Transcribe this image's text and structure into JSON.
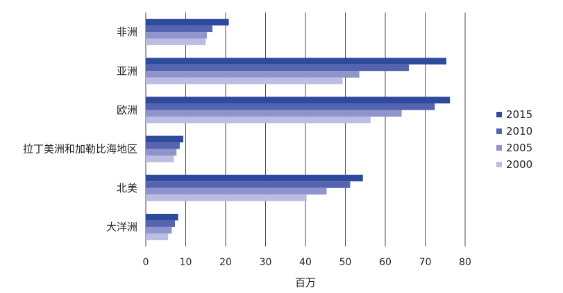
{
  "chart_data": {
    "type": "bar",
    "orientation": "horizontal",
    "categories": [
      "非洲",
      "亚洲",
      "欧洲",
      "拉丁美洲和加勒比海地区",
      "北美",
      "大洋洲"
    ],
    "series": [
      {
        "name": "2015",
        "color": "#2e4a9c",
        "values": [
          20.8,
          75.3,
          76.2,
          9.4,
          54.4,
          8.1
        ]
      },
      {
        "name": "2010",
        "color": "#5563b0",
        "values": [
          16.7,
          65.9,
          72.4,
          8.5,
          51.2,
          7.3
        ]
      },
      {
        "name": "2005",
        "color": "#8f94cc",
        "values": [
          15.3,
          53.5,
          64.1,
          7.7,
          45.3,
          6.5
        ]
      },
      {
        "name": "2000",
        "color": "#bcbde2",
        "values": [
          15.0,
          49.3,
          56.3,
          7.0,
          40.3,
          5.6
        ]
      }
    ],
    "xticks": [
      "0",
      "10",
      "20",
      "30",
      "40",
      "50",
      "60",
      "70",
      "80"
    ],
    "xlim": [
      0,
      80
    ],
    "xlabel": "百万",
    "grid": "vertical",
    "legend": "right"
  }
}
